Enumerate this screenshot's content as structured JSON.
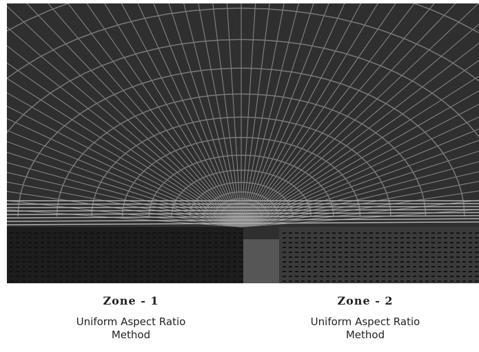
{
  "zones": [
    {
      "title": "Zone - 1",
      "lines": [
        "Uniform Aspect Ratio",
        "Method"
      ]
    },
    {
      "title": "Zone - 2",
      "lines": [
        "Uniform Aspect Ratio",
        "Method"
      ]
    }
  ]
}
